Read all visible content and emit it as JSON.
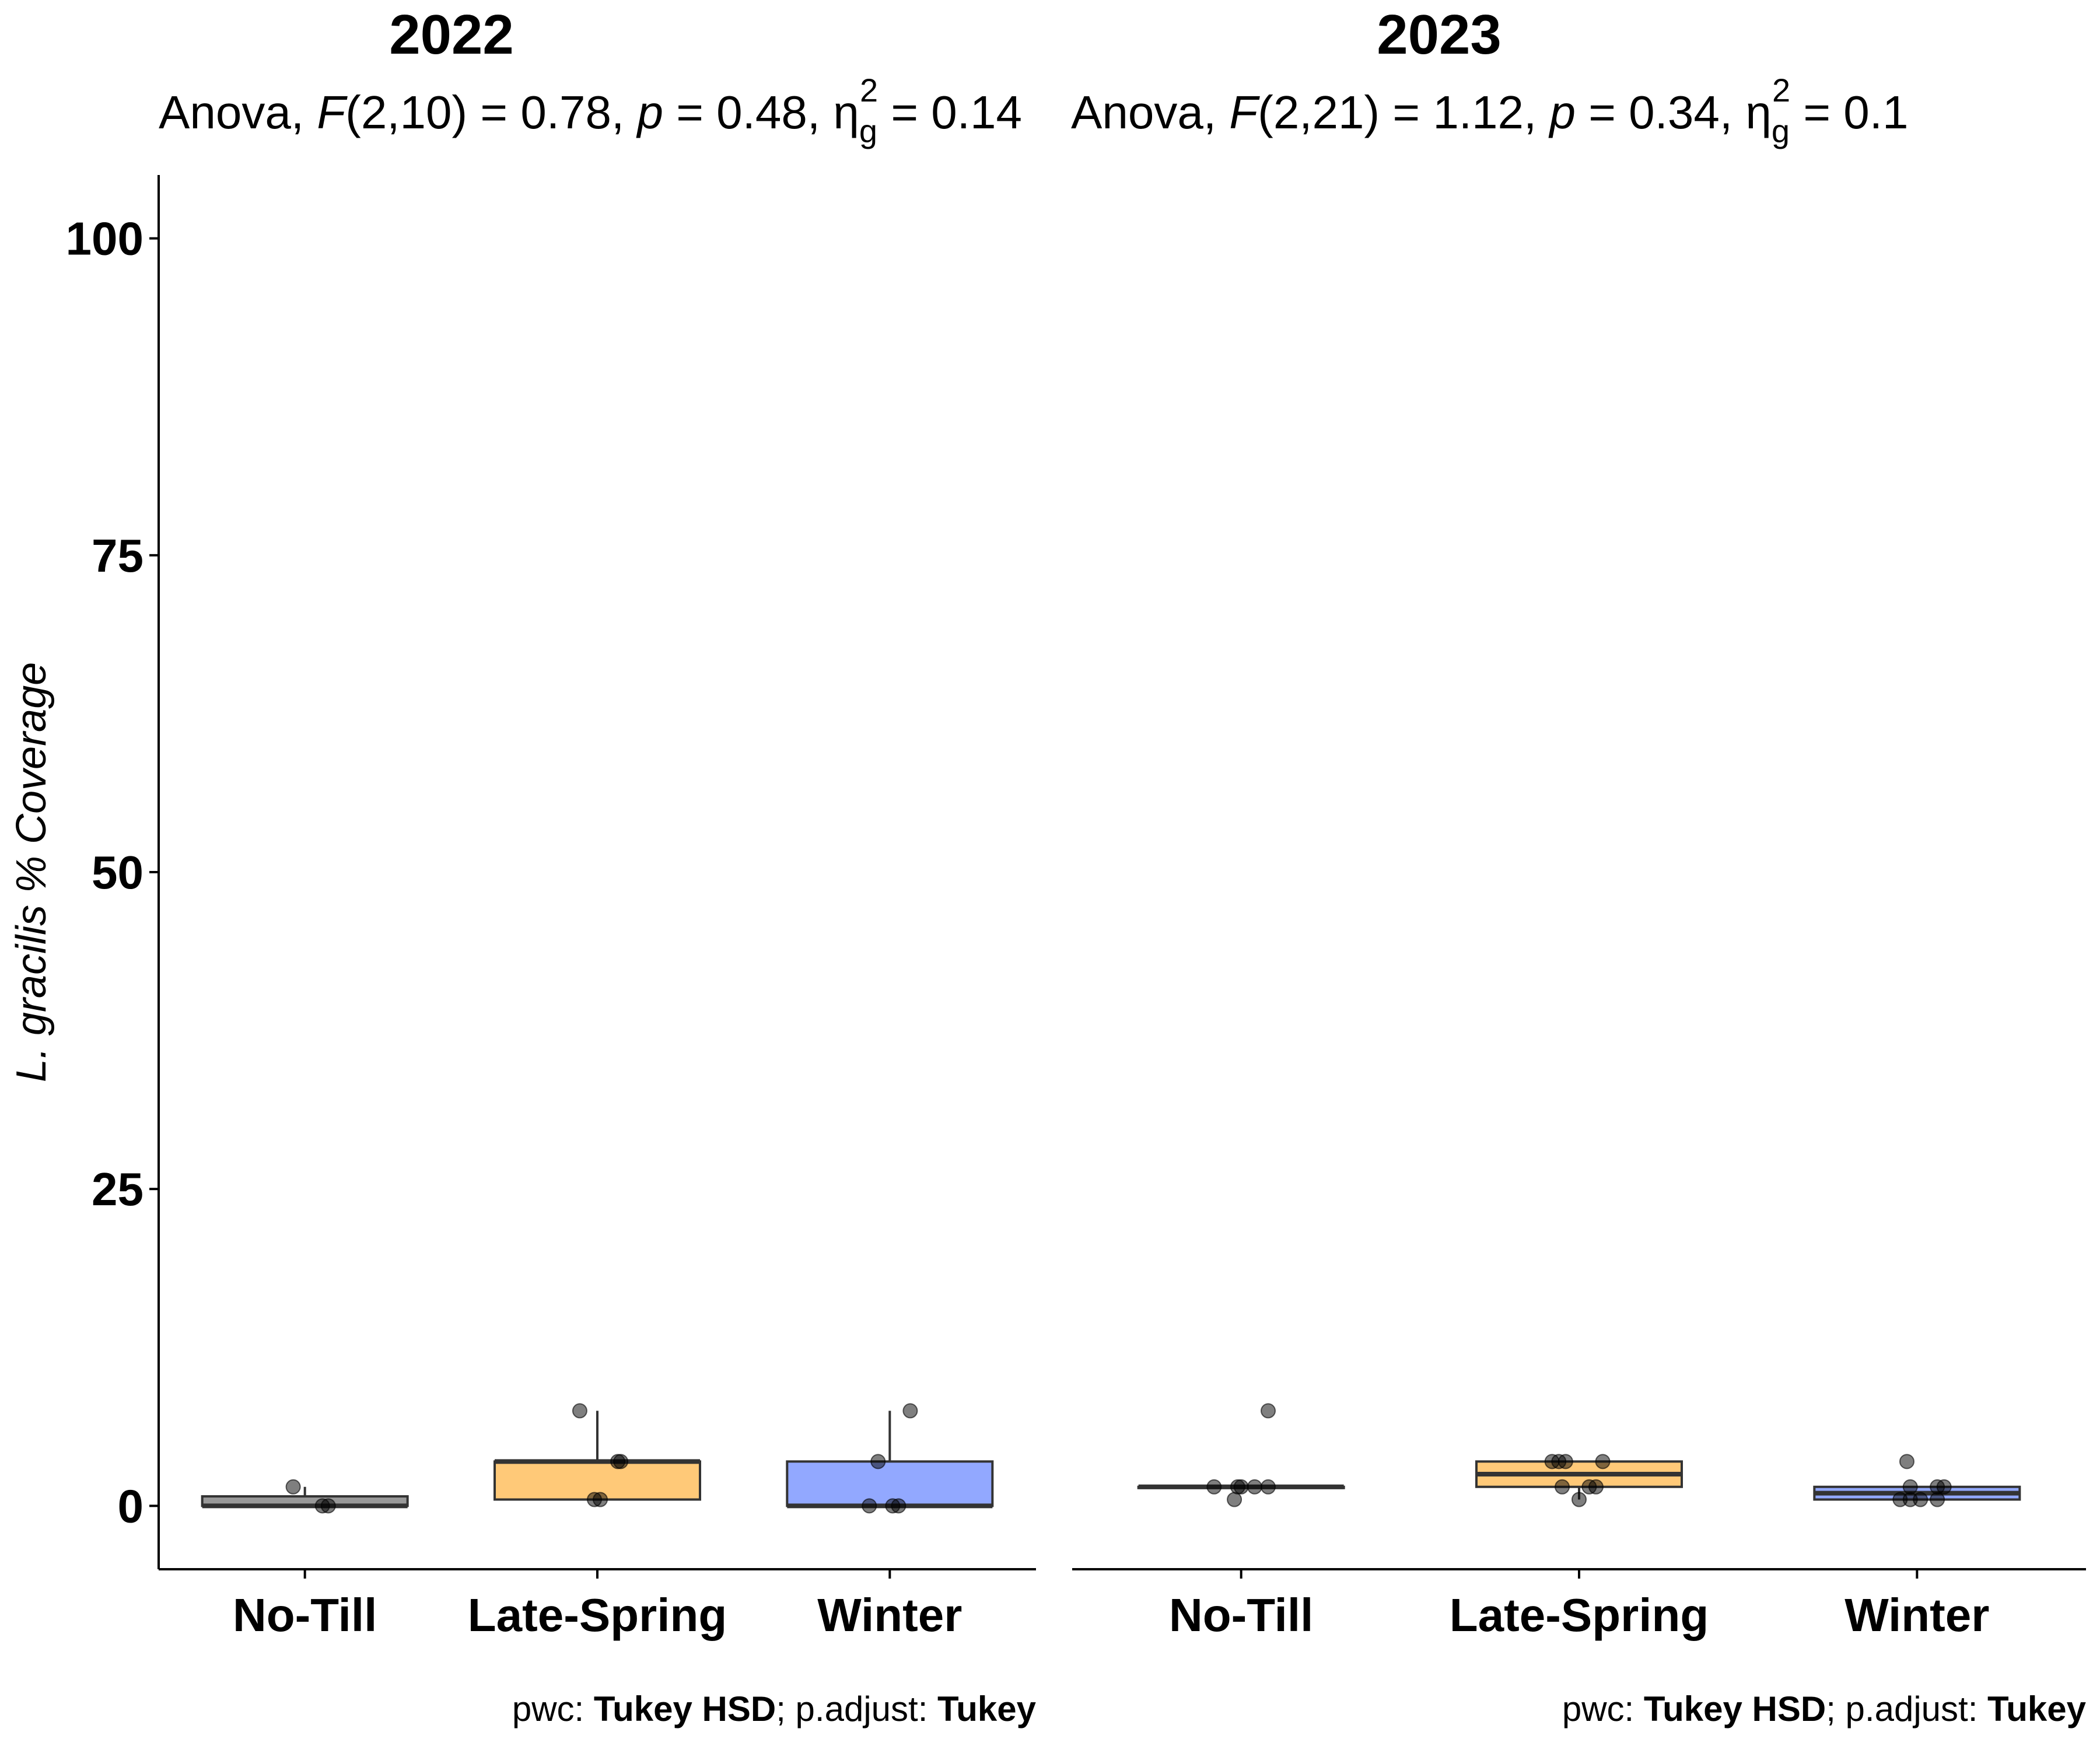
{
  "chart_data": [
    {
      "type": "boxplot",
      "title": "2022",
      "subtitle": {
        "prefix": "Anova, ",
        "stat": "F",
        "stat_args": "(2,10) = 0.78, ",
        "p_label": "p",
        "p_value": " = 0.48, ",
        "eta_symbol": "η",
        "eta_sub": "g",
        "eta_sup": "2",
        "eta_value": " = 0.14"
      },
      "caption": {
        "pwc_label": "pwc: ",
        "pwc_method": "Tukey HSD",
        "sep": "; p.adjust: ",
        "adjust_method": "Tukey"
      },
      "categories": [
        "No-Till",
        "Late-Spring",
        "Winter"
      ],
      "colors": [
        "#999999",
        "#FFC978",
        "#92A8FF"
      ],
      "boxes": [
        {
          "q1": 0,
          "median": 0,
          "q3": 0.75,
          "whisker_low": 0,
          "whisker_high": 1.5
        },
        {
          "q1": 0.5,
          "median": 3.5,
          "q3": 3.5,
          "whisker_low": 0.5,
          "whisker_high": 7.5
        },
        {
          "q1": 0,
          "median": 0,
          "q3": 3.5,
          "whisker_low": 0,
          "whisker_high": 7.5
        }
      ],
      "points": [
        [
          {
            "x_offset": -0.04,
            "y": 1.5
          },
          {
            "x_offset": 0.06,
            "y": 0
          },
          {
            "x_offset": 0.08,
            "y": 0
          }
        ],
        [
          {
            "x_offset": -0.06,
            "y": 7.5
          },
          {
            "x_offset": -0.01,
            "y": 0.5
          },
          {
            "x_offset": 0.01,
            "y": 0.5
          },
          {
            "x_offset": 0.07,
            "y": 3.5
          },
          {
            "x_offset": 0.08,
            "y": 3.5
          }
        ],
        [
          {
            "x_offset": -0.04,
            "y": 3.5
          },
          {
            "x_offset": 0.07,
            "y": 7.5
          },
          {
            "x_offset": -0.07,
            "y": 0
          },
          {
            "x_offset": 0.01,
            "y": 0
          },
          {
            "x_offset": 0.03,
            "y": 0
          }
        ]
      ],
      "ylim": [
        -5,
        105
      ],
      "yticks": [
        0,
        25,
        50,
        75,
        100
      ],
      "ylabel": "L. gracilis % Coverage"
    },
    {
      "type": "boxplot",
      "title": "2023",
      "subtitle": {
        "prefix": "Anova, ",
        "stat": "F",
        "stat_args": "(2,21) = 1.12, ",
        "p_label": "p",
        "p_value": " = 0.34, ",
        "eta_symbol": "η",
        "eta_sub": "g",
        "eta_sup": "2",
        "eta_value": " = 0.1"
      },
      "caption": {
        "pwc_label": "pwc: ",
        "pwc_method": "Tukey HSD",
        "sep": "; p.adjust: ",
        "adjust_method": "Tukey"
      },
      "categories": [
        "No-Till",
        "Late-Spring",
        "Winter"
      ],
      "colors": [
        "#999999",
        "#FFC978",
        "#92A8FF"
      ],
      "boxes": [
        {
          "q1": 1.5,
          "median": 1.5,
          "q3": 1.5,
          "whisker_low": 1.5,
          "whisker_high": 1.5
        },
        {
          "q1": 1.5,
          "median": 2.5,
          "q3": 3.5,
          "whisker_low": 0.5,
          "whisker_high": 3.5
        },
        {
          "q1": 0.5,
          "median": 1.0,
          "q3": 1.5,
          "whisker_low": 0.5,
          "whisker_high": 1.5
        }
      ],
      "points": [
        [
          {
            "x_offset": 0.08,
            "y": 7.5
          },
          {
            "x_offset": -0.02,
            "y": 0.5
          },
          {
            "x_offset": -0.08,
            "y": 1.5
          },
          {
            "x_offset": -0.01,
            "y": 1.5
          },
          {
            "x_offset": 0.0,
            "y": 1.5
          },
          {
            "x_offset": 0.04,
            "y": 1.5
          },
          {
            "x_offset": 0.08,
            "y": 1.5
          }
        ],
        [
          {
            "x_offset": -0.08,
            "y": 3.5
          },
          {
            "x_offset": -0.06,
            "y": 3.5
          },
          {
            "x_offset": -0.04,
            "y": 3.5
          },
          {
            "x_offset": 0.07,
            "y": 3.5
          },
          {
            "x_offset": -0.05,
            "y": 1.5
          },
          {
            "x_offset": 0.03,
            "y": 1.5
          },
          {
            "x_offset": 0.05,
            "y": 1.5
          },
          {
            "x_offset": 0.0,
            "y": 0.5
          }
        ],
        [
          {
            "x_offset": -0.05,
            "y": 0.5
          },
          {
            "x_offset": -0.02,
            "y": 0.5
          },
          {
            "x_offset": 0.01,
            "y": 0.5
          },
          {
            "x_offset": 0.06,
            "y": 0.5
          },
          {
            "x_offset": -0.02,
            "y": 1.5
          },
          {
            "x_offset": 0.06,
            "y": 1.5
          },
          {
            "x_offset": 0.08,
            "y": 1.5
          },
          {
            "x_offset": -0.03,
            "y": 3.5
          }
        ]
      ],
      "ylim": [
        -5,
        105
      ],
      "yticks": [
        0,
        25,
        50,
        75,
        100
      ],
      "ylabel": ""
    }
  ]
}
